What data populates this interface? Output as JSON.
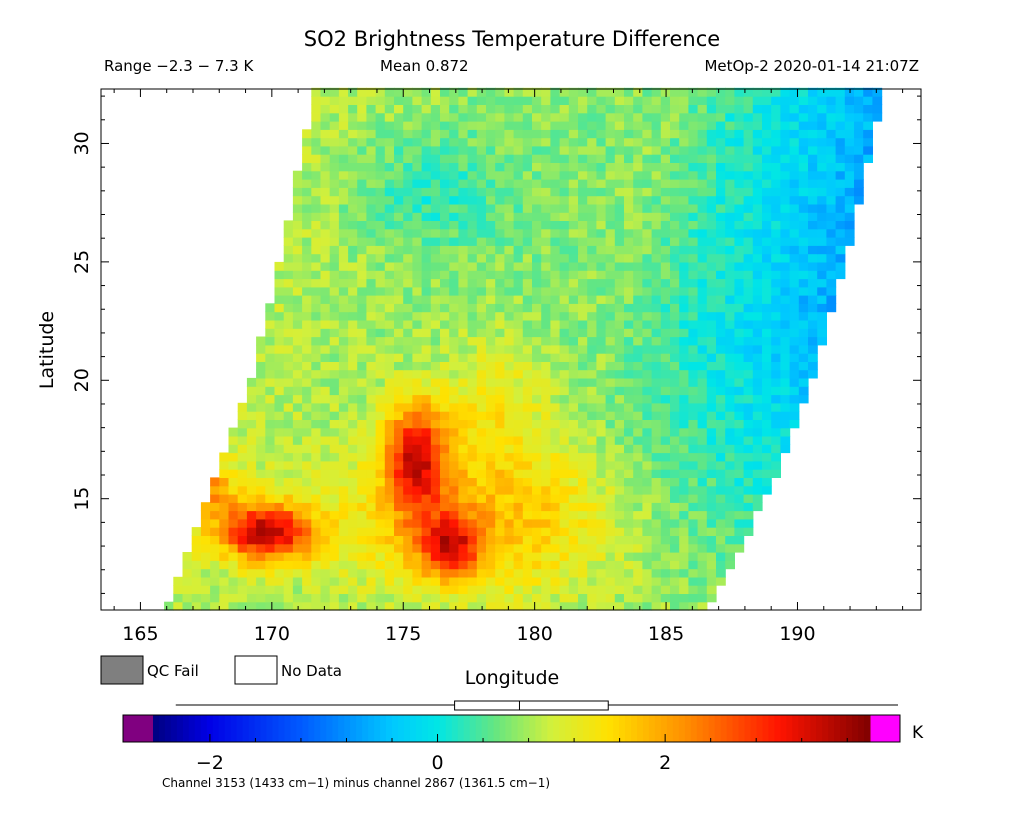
{
  "header": {
    "title": "SO2 Brightness Temperature Difference",
    "range_text": "Range −2.3 − 7.3 K",
    "mean_text": "Mean 0.872",
    "satellite_text": "MetOp-2 2020-01-14 21:07Z"
  },
  "legend": {
    "qc_fail_label": "QC Fail",
    "qc_fail_color": "#7f7f7f",
    "no_data_label": "No Data",
    "no_data_color": "#ffffff"
  },
  "colorbar": {
    "unit": "K",
    "ticks": [
      {
        "value": -2,
        "label": "−2"
      },
      {
        "value": 0,
        "label": "0"
      },
      {
        "value": 2,
        "label": "2"
      }
    ],
    "range": [
      -2.5,
      3.8
    ],
    "below_color": "#800080",
    "above_color": "#ff00ff",
    "box_stats": {
      "min": -2.3,
      "q1": 0.15,
      "median": 0.72,
      "q3": 1.5,
      "max": 7.3
    },
    "footnote": "Channel 3153 (1433 cm−1) minus channel 2867 (1361.5 cm−1)"
  },
  "chart_data": {
    "type": "heatmap",
    "title": "SO2 Brightness Temperature Difference",
    "xlabel": "Longitude",
    "ylabel": "Latitude",
    "xlim": [
      163.5,
      194.7
    ],
    "ylim": [
      10.3,
      32.3
    ],
    "xticks": [
      {
        "value": 165,
        "label": "165"
      },
      {
        "value": 170,
        "label": "170"
      },
      {
        "value": 175,
        "label": "175"
      },
      {
        "value": 180,
        "label": "180"
      },
      {
        "value": 185,
        "label": "185"
      },
      {
        "value": 190,
        "label": "190"
      }
    ],
    "yticks": [
      {
        "value": 15,
        "label": "15"
      },
      {
        "value": 20,
        "label": "20"
      },
      {
        "value": 25,
        "label": "25"
      },
      {
        "value": 30,
        "label": "30"
      }
    ],
    "units": "K",
    "swath": {
      "left_edge": [
        [
          166.0,
          10.3
        ],
        [
          167.5,
          15
        ],
        [
          169.2,
          20
        ],
        [
          170.3,
          25
        ],
        [
          171.2,
          30
        ],
        [
          171.7,
          32.3
        ]
      ],
      "right_edge": [
        [
          186.5,
          10.3
        ],
        [
          188.8,
          15
        ],
        [
          190.6,
          20
        ],
        [
          191.8,
          25
        ],
        [
          192.8,
          30
        ],
        [
          193.4,
          32.3
        ]
      ]
    },
    "plumes": [
      {
        "lon": 169.8,
        "lat": 13.6,
        "peak_K": 7.3
      },
      {
        "lon": 175.5,
        "lat": 15.9,
        "peak_K": 6.0
      },
      {
        "lon": 176.8,
        "lat": 12.7,
        "peak_K": 5.0
      }
    ],
    "low_region": {
      "lon": 187.5,
      "lat": 22.0,
      "value_K": -1.8
    }
  }
}
